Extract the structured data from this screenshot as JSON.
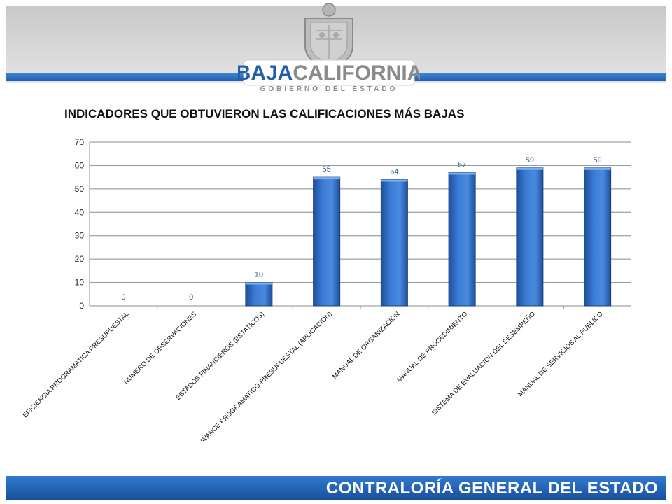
{
  "header": {
    "logo_name": "BAJACALIFORNIA",
    "logo_name_part1": "BAJA",
    "logo_name_part2": "CALIFORNIA",
    "logo_subtitle": "GOBIERNO DEL ESTADO",
    "colors": {
      "band": "#d6d6d6",
      "stripe": "#2f6fbf",
      "logo_blue": "#1f5fae",
      "logo_gray": "#8a8a8a"
    }
  },
  "slide_title": "INDICADORES QUE OBTUVIERON LAS CALIFICACIONES MÁS BAJAS",
  "chart_data": {
    "type": "bar",
    "title": "",
    "xlabel": "",
    "ylabel": "",
    "ylim": [
      0,
      70
    ],
    "yticks": [
      0,
      10,
      20,
      30,
      40,
      50,
      60,
      70
    ],
    "grid": true,
    "categories": [
      "EFICIENCIA PROGRAMATICA PRESUPUESTAL",
      "NUMERO DE OBSERVACIONES",
      "ESTADOS FINANCIEROS (ESTATICOS)",
      "AVANCE PROGRAMATICO-PRESUPUESTAL (APLICACION)",
      "MANUAL DE ORGANIZACION",
      "MANUAL DE PROCEDIMIENTO",
      "SISTEMA DE EVALUACION DEL DESEMPEÑO",
      "MANUAL DE SERVICIOS AL PUBLICO"
    ],
    "values": [
      0,
      0,
      10,
      55,
      54,
      57,
      59,
      59
    ],
    "bar_color": "#3a7bd5",
    "label_color": "#2a5d9a"
  },
  "footer": {
    "text": "CONTRALORÍA GENERAL DEL ESTADO",
    "color": "#2467b8"
  }
}
